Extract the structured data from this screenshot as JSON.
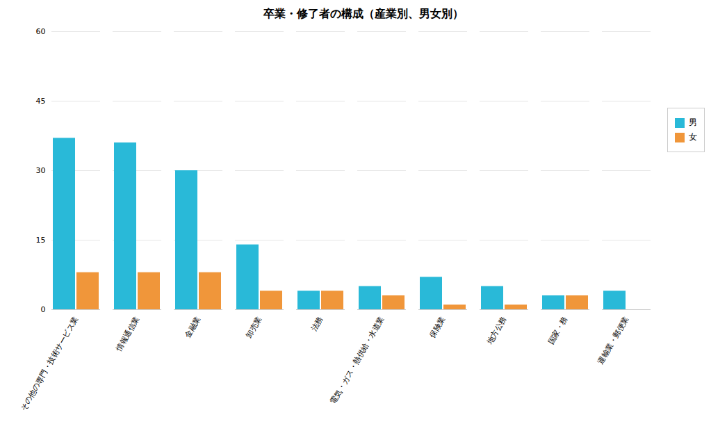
{
  "chart_data": {
    "type": "bar",
    "title": "卒業・修了者の構成（産業別、男女別）",
    "categories": [
      "その他の専門・技術サービス業",
      "情報通信業",
      "金融業",
      "卸売業",
      "法務",
      "電気・ガス・熱供給・水道業",
      "保険業",
      "地方公務",
      "国家・務",
      "運輸業・郵便業"
    ],
    "series": [
      {
        "name": "男",
        "color": "#29b9d8",
        "values": [
          37,
          36,
          30,
          14,
          4,
          5,
          7,
          5,
          3,
          4
        ]
      },
      {
        "name": "女",
        "color": "#f0963a",
        "values": [
          8,
          8,
          8,
          4,
          4,
          3,
          1,
          1,
          3,
          0
        ]
      }
    ],
    "ylim": [
      0,
      60
    ],
    "yticks": [
      0,
      15,
      30,
      45,
      60
    ],
    "grid": true,
    "legend": "right"
  }
}
